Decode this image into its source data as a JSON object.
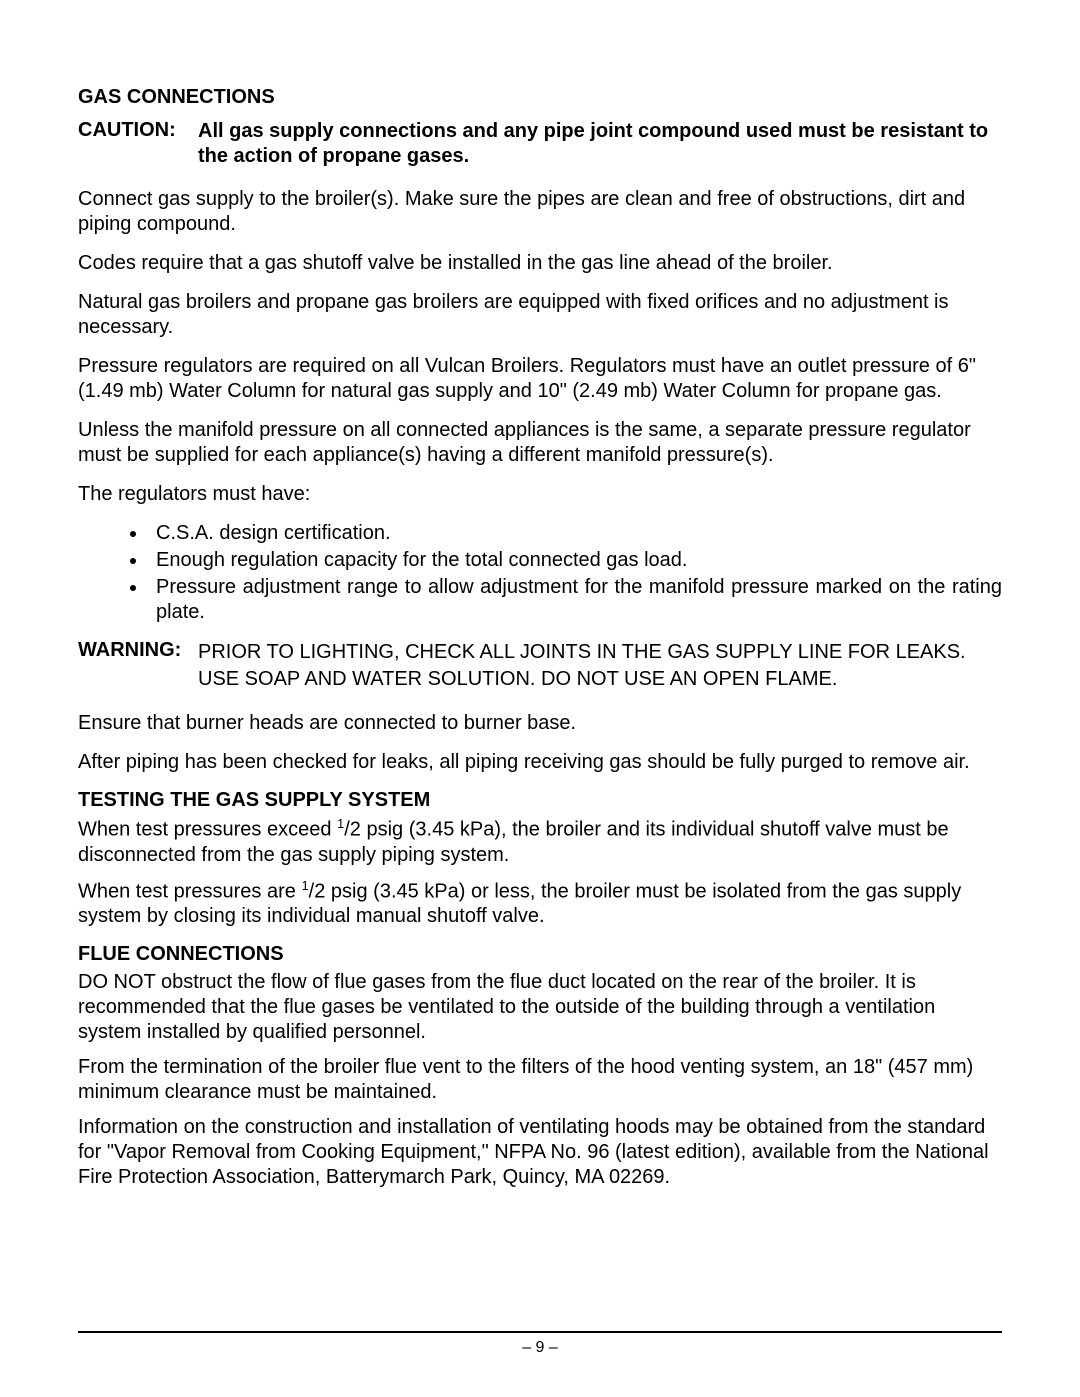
{
  "section1": {
    "heading": "GAS CONNECTIONS",
    "caution_label": "CAUTION:",
    "caution_body": "All gas supply connections and any pipe joint compound used must be resistant to the action of propane gases.",
    "p1": "Connect gas supply to the broiler(s). Make sure the pipes are clean and free of obstructions, dirt and piping compound.",
    "p2": "Codes require that a gas shutoff valve be installed in the gas line ahead of the broiler.",
    "p3": "Natural gas broilers and propane gas broilers are equipped with fixed orifices and no adjustment is necessary.",
    "p4": "Pressure regulators are required on all Vulcan Broilers. Regulators must have an outlet pressure of 6\" (1.49 mb) Water Column for natural gas supply and 10\" (2.49 mb) Water Column for propane gas.",
    "p5": "Unless the manifold pressure on all connected appliances is the same, a separate pressure regulator must be supplied for each appliance(s) having a different manifold pressure(s).",
    "p6": "The regulators must have:",
    "bullets": [
      "C.S.A. design certification.",
      "Enough regulation capacity for the total connected gas load.",
      "Pressure adjustment range to allow adjustment for the manifold pressure marked on the rating plate."
    ],
    "warning_label": "WARNING:",
    "warning_body": "PRIOR TO LIGHTING, CHECK ALL JOINTS IN THE GAS SUPPLY LINE FOR LEAKS. USE SOAP AND WATER SOLUTION. DO NOT USE AN OPEN FLAME.",
    "p7": "Ensure that burner heads are connected to burner base.",
    "p8": "After piping has been checked for leaks, all piping receiving gas should be fully purged to remove air."
  },
  "section2": {
    "heading": "TESTING THE GAS SUPPLY SYSTEM",
    "p1_pre": "When test pressures exceed ",
    "half_sup": "1",
    "half_rest": "/2 psig (3.45 kPa), the broiler and its individual shutoff valve must be disconnected from the gas supply piping system.",
    "p2_pre": "When test pressures are ",
    "p2_rest": "/2 psig (3.45 kPa) or less, the broiler must be isolated from the gas supply system by closing its individual manual shutoff valve."
  },
  "section3": {
    "heading": "FLUE CONNECTIONS",
    "p1": "DO NOT obstruct the flow of flue gases from the flue duct located on the rear of the broiler. It is recommended that the flue gases be ventilated to the outside of the building through a ventilation system installed by qualified personnel.",
    "p2": "From the termination of the broiler flue vent to the filters of the hood venting system, an 18\" (457 mm) minimum clearance must be maintained.",
    "p3": "Information on the construction and installation of ventilating hoods may be obtained from the standard for \"Vapor Removal from Cooking Equipment,\" NFPA No. 96 (latest edition), available from the National Fire Protection Association, Batterymarch Park, Quincy, MA 02269."
  },
  "footer": {
    "page": "– 9 –"
  }
}
